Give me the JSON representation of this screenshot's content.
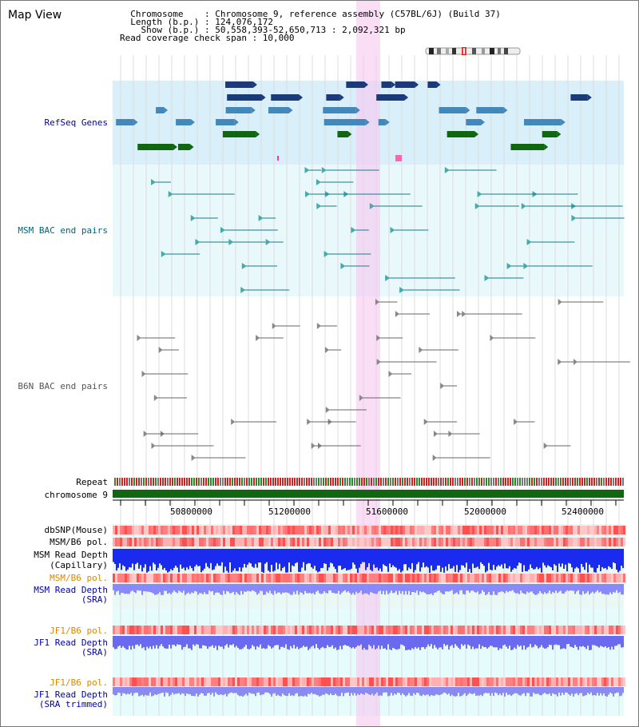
{
  "header": {
    "title": "Map View",
    "info_lines": [
      "  Chromosome    : Chromosome 9, reference assembly (C57BL/6J) (Build 37)",
      "  Length (b.p.) : 124,076,172",
      "    Show (b.p.) : 50,558,393-52,650,713 : 2,092,321 bp",
      "Read coverage check span : 10,000"
    ]
  },
  "tracks": {
    "refseq": {
      "label": "RefSeq Genes",
      "color": "#0000aa"
    },
    "msm_bac": {
      "label": "MSM BAC end pairs",
      "color": "#006677"
    },
    "b6n_bac": {
      "label": "B6N BAC end pairs",
      "color": "#555555"
    },
    "repeat": {
      "label": "Repeat"
    },
    "chromosome": {
      "label": "chromosome 9",
      "ticks": [
        "50800000",
        "51200000",
        "51600000",
        "52000000",
        "52400000"
      ]
    },
    "dbsnp": {
      "label": "dbSNP(Mouse)"
    },
    "msm_b6_pol": {
      "label": "MSM/B6 pol."
    },
    "msm_depth_cap": {
      "label1": "MSM Read Depth",
      "label2": "(Capillary)"
    },
    "msm_b6_pol2": {
      "label": "MSM/B6 pol.",
      "color": "#dd8800"
    },
    "msm_depth_sra": {
      "label1": "MSM Read Depth",
      "label2": "(SRA)",
      "color": "#0000aa"
    },
    "jf1_b6_pol": {
      "label": "JF1/B6 pol.",
      "color": "#dd8800"
    },
    "jf1_depth_sra": {
      "label1": "JF1 Read Depth",
      "label2": "(SRA)",
      "color": "#0000aa"
    },
    "jf1_b6_pol2": {
      "label": "JF1/B6 pol.",
      "color": "#dd8800"
    },
    "jf1_depth_sra_trim": {
      "label1": "JF1 Read Depth",
      "label2": "(SRA trimmed)",
      "color": "#0000aa"
    }
  }
}
